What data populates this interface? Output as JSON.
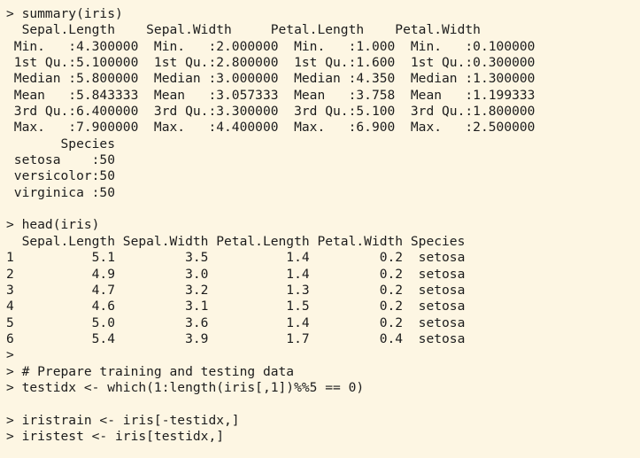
{
  "console": {
    "lines": [
      "> summary(iris)",
      "  Sepal.Length    Sepal.Width     Petal.Length    Petal.Width",
      " Min.   :4.300000  Min.   :2.000000  Min.   :1.000  Min.   :0.100000",
      " 1st Qu.:5.100000  1st Qu.:2.800000  1st Qu.:1.600  1st Qu.:0.300000",
      " Median :5.800000  Median :3.000000  Median :4.350  Median :1.300000",
      " Mean   :5.843333  Mean   :3.057333  Mean   :3.758  Mean   :1.199333",
      " 3rd Qu.:6.400000  3rd Qu.:3.300000  3rd Qu.:5.100  3rd Qu.:1.800000",
      " Max.   :7.900000  Max.   :4.400000  Max.   :6.900  Max.   :2.500000",
      "       Species",
      " setosa    :50",
      " versicolor:50",
      " virginica :50",
      "",
      "> head(iris)",
      "  Sepal.Length Sepal.Width Petal.Length Petal.Width Species",
      "1          5.1         3.5          1.4         0.2  setosa",
      "2          4.9         3.0          1.4         0.2  setosa",
      "3          4.7         3.2          1.3         0.2  setosa",
      "4          4.6         3.1          1.5         0.2  setosa",
      "5          5.0         3.6          1.4         0.2  setosa",
      "6          5.4         3.9          1.7         0.4  setosa",
      ">",
      "> # Prepare training and testing data",
      "> testidx <- which(1:length(iris[,1])%%5 == 0)",
      "",
      "> iristrain <- iris[-testidx,]",
      "> iristest <- iris[testidx,]"
    ]
  }
}
